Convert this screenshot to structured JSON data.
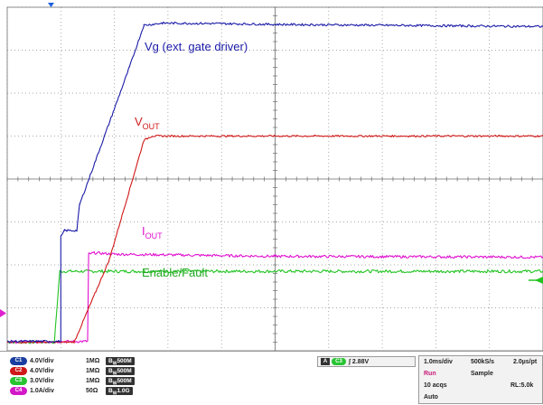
{
  "chart_data": {
    "type": "line",
    "title": "",
    "xlabel": "",
    "ylabel": "",
    "grid": true,
    "divisions": {
      "x": 10,
      "y": 8
    },
    "xlim": [
      0,
      10
    ],
    "ylim": [
      -4,
      4
    ],
    "x_unit": "div",
    "y_unit": "div",
    "series": [
      {
        "name": "Vg (ext. gate driver)",
        "color": "#1a1aa8",
        "channel": "C1",
        "noise": 0.025,
        "points": [
          [
            0,
            -3.78
          ],
          [
            1.0,
            -3.78
          ],
          [
            1.0,
            -1.35
          ],
          [
            1.07,
            -1.2
          ],
          [
            1.3,
            -1.2
          ],
          [
            1.35,
            -0.6
          ],
          [
            2.28,
            2.6
          ],
          [
            2.55,
            3.58
          ],
          [
            2.9,
            3.63
          ],
          [
            3.9,
            3.62
          ],
          [
            5.0,
            3.6
          ],
          [
            10,
            3.55
          ]
        ]
      },
      {
        "name": "V",
        "subscript": "OUT",
        "color": "#d01818",
        "channel": "C2",
        "noise": 0.02,
        "points": [
          [
            0,
            -3.8
          ],
          [
            1.25,
            -3.8
          ],
          [
            1.9,
            -1.9
          ],
          [
            2.55,
            0.9
          ],
          [
            2.7,
            1.0
          ],
          [
            10,
            1.0
          ]
        ]
      },
      {
        "name": "I",
        "subscript": "OUT",
        "color": "#e010d0",
        "channel": "C4",
        "noise": 0.03,
        "points": [
          [
            0,
            -3.8
          ],
          [
            1.5,
            -3.78
          ],
          [
            1.52,
            -1.75
          ],
          [
            1.62,
            -1.72
          ],
          [
            2.0,
            -1.75
          ],
          [
            5.0,
            -1.8
          ],
          [
            10,
            -1.82
          ]
        ]
      },
      {
        "name": "Enable/Fault",
        "color": "#22c322",
        "channel": "C3",
        "noise": 0.035,
        "points": [
          [
            0,
            -3.8
          ],
          [
            0.88,
            -3.8
          ],
          [
            0.98,
            -2.15
          ],
          [
            10,
            -2.15
          ]
        ]
      }
    ],
    "annotations": [
      "Vg (ext. gate driver)",
      "V",
      "OUT",
      "I",
      "OUT",
      "Enable/Fault"
    ]
  },
  "channels": [
    {
      "id": "C1",
      "color": "#1a3ea0",
      "scale": "4.0V/div",
      "impedance": "1MΩ",
      "bw": "500M"
    },
    {
      "id": "C2",
      "color": "#d01818",
      "scale": "4.0V/div",
      "impedance": "1MΩ",
      "bw": "500M"
    },
    {
      "id": "C3",
      "color": "#27c432",
      "scale": "3.0V/div",
      "impedance": "1MΩ",
      "bw": "500M"
    },
    {
      "id": "C4",
      "color": "#d318c8",
      "scale": "1.0A/div",
      "impedance": "50Ω",
      "bw": "1.0G"
    }
  ],
  "bw_prefix": "B",
  "bw_sub": "W",
  "trigger": {
    "source_label": "A",
    "channel": "C3",
    "slope": "∫",
    "level": "2.88V"
  },
  "horizontal": {
    "timebase": "1.0ms/div",
    "sample_rate": "500kS/s",
    "resolution": "2.0µs/pt",
    "state": "Run",
    "mode": "Sample",
    "acqs": "10 acqs",
    "record_length": "RL:5.0k",
    "trigger_mode": "Auto"
  },
  "colors": {
    "grid": "#8c8c8c",
    "frame": "#707070",
    "marker_blue": "#1a60e0",
    "marker_pink": "#e020d0",
    "marker_green": "#22c322"
  }
}
